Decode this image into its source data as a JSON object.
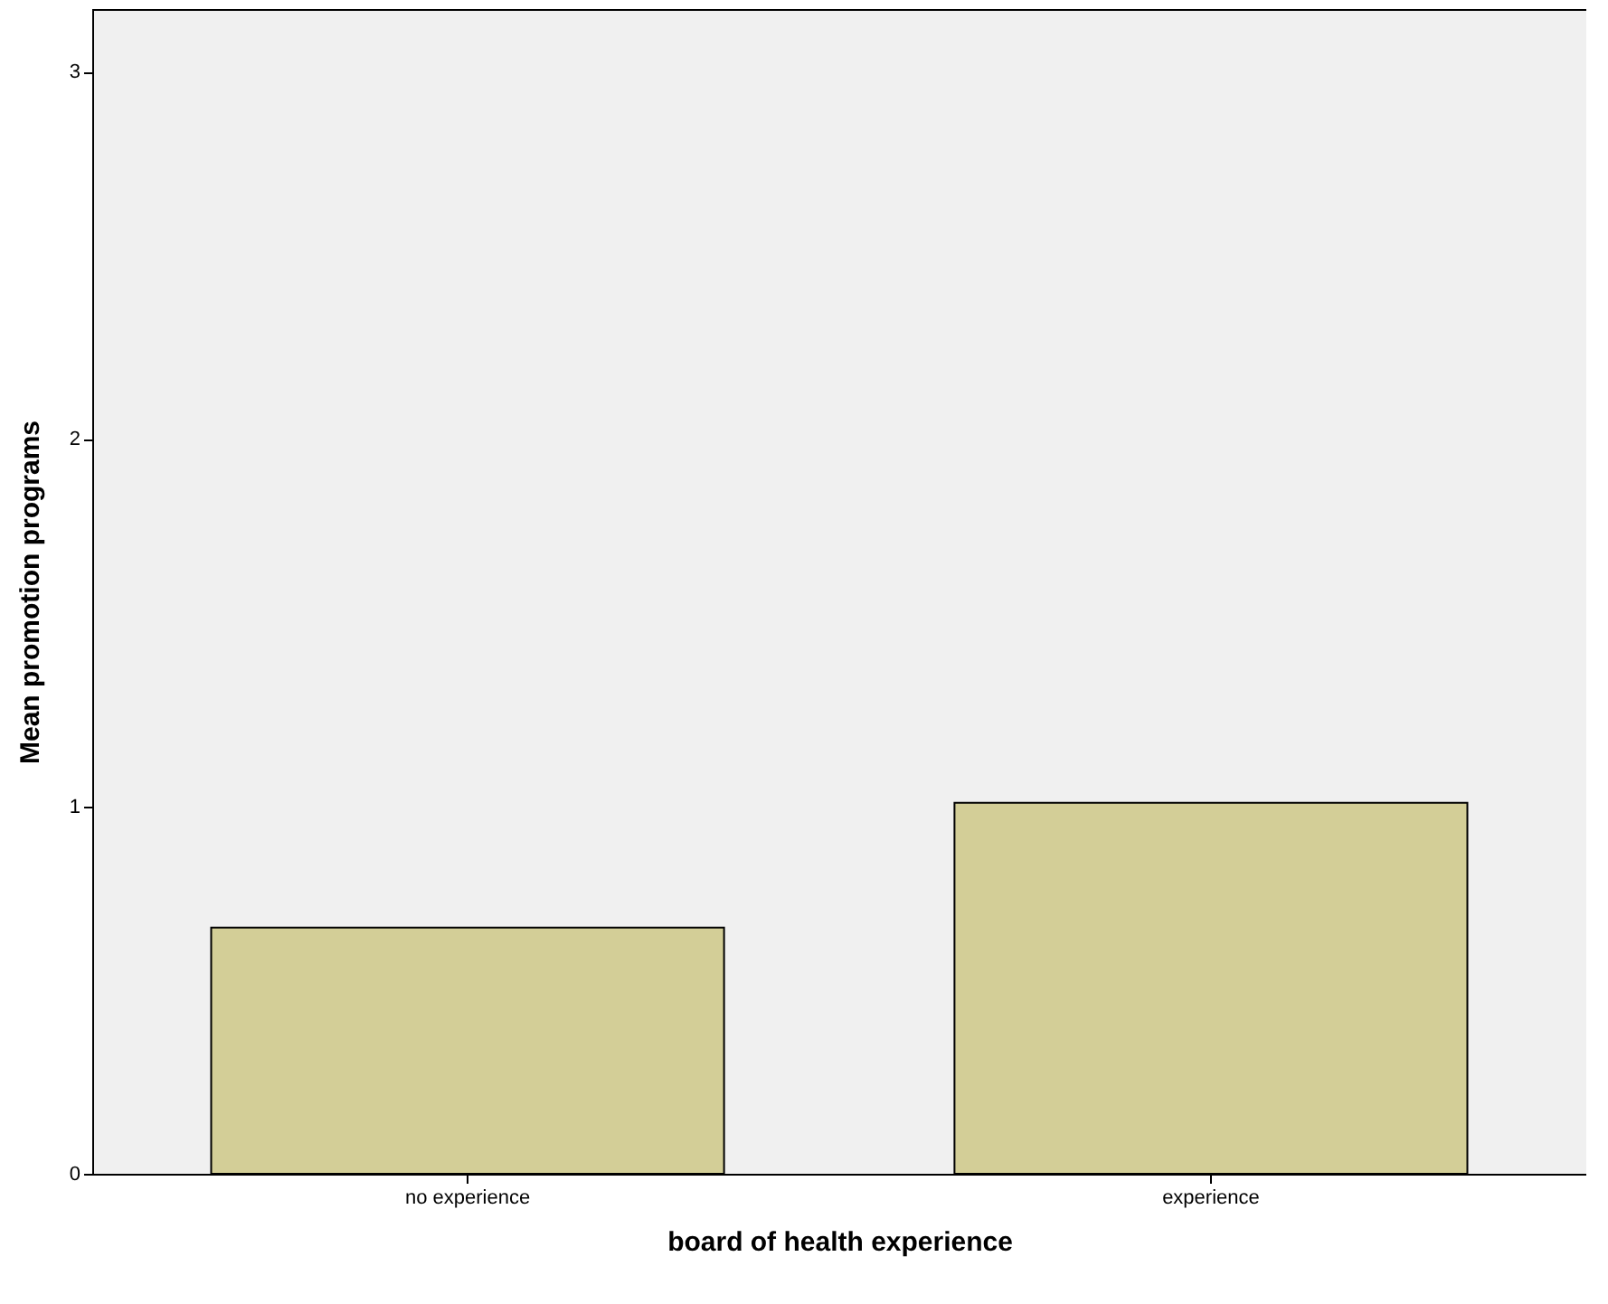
{
  "chart_data": {
    "type": "bar",
    "xlabel": "board of health experience",
    "ylabel": "Mean promotion programs",
    "categories": [
      "no experience",
      "experience"
    ],
    "values": [
      0.67,
      1.01
    ],
    "color": "#d3ce97",
    "ylim": [
      0,
      3.17
    ],
    "yticks": [
      0,
      1,
      2,
      3
    ],
    "grid": false
  }
}
